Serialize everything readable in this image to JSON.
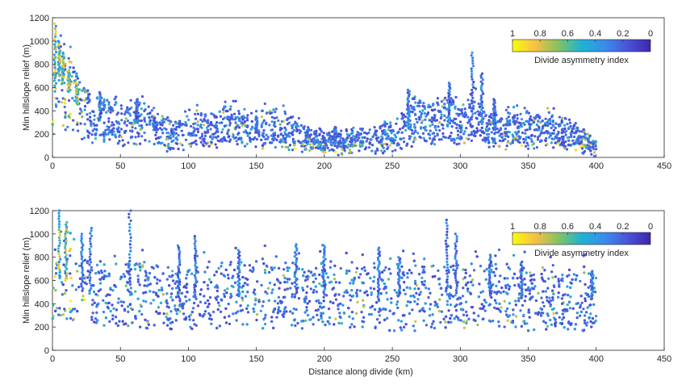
{
  "figure": {
    "xlabel": "Distance along divide (km)",
    "colorbar": {
      "label": "Divide asymmetry index",
      "tick_labels": [
        "1",
        "0.8",
        "0.6",
        "0.4",
        "0.2",
        "0"
      ],
      "tick_values": [
        1,
        0.8,
        0.6,
        0.4,
        0.2,
        0
      ],
      "colors": [
        "#F9FB0E",
        "#F6C045",
        "#83C263",
        "#1DB3D3",
        "#3A8DEA",
        "#4A53DB",
        "#3E26A8"
      ],
      "placement": "top-right",
      "range": [
        0,
        1
      ]
    }
  },
  "chart_data": [
    {
      "type": "scatter",
      "title": "",
      "xlabel": "",
      "ylabel": "Min hillslope relief (m)",
      "xlim": [
        0,
        450
      ],
      "ylim": [
        0,
        1200
      ],
      "xticks": [
        0,
        50,
        100,
        150,
        200,
        250,
        300,
        350,
        400,
        450
      ],
      "yticks": [
        0,
        200,
        400,
        600,
        800,
        1000,
        1200
      ],
      "grid": false,
      "x_extent": [
        0,
        400
      ],
      "note_color": "color encodes divide asymmetry index",
      "profile": [
        [
          0,
          520
        ],
        [
          5,
          700
        ],
        [
          10,
          600
        ],
        [
          20,
          420
        ],
        [
          30,
          340
        ],
        [
          40,
          300
        ],
        [
          50,
          280
        ],
        [
          60,
          300
        ],
        [
          70,
          280
        ],
        [
          80,
          220
        ],
        [
          90,
          200
        ],
        [
          100,
          240
        ],
        [
          110,
          260
        ],
        [
          120,
          250
        ],
        [
          130,
          260
        ],
        [
          140,
          250
        ],
        [
          150,
          240
        ],
        [
          160,
          250
        ],
        [
          170,
          240
        ],
        [
          180,
          200
        ],
        [
          190,
          150
        ],
        [
          200,
          130
        ],
        [
          210,
          120
        ],
        [
          220,
          140
        ],
        [
          230,
          140
        ],
        [
          240,
          160
        ],
        [
          250,
          180
        ],
        [
          260,
          260
        ],
        [
          270,
          320
        ],
        [
          280,
          300
        ],
        [
          290,
          330
        ],
        [
          300,
          300
        ],
        [
          310,
          330
        ],
        [
          320,
          260
        ],
        [
          330,
          220
        ],
        [
          340,
          240
        ],
        [
          350,
          240
        ],
        [
          360,
          230
        ],
        [
          370,
          230
        ],
        [
          380,
          200
        ],
        [
          390,
          130
        ],
        [
          400,
          90
        ]
      ],
      "spikes": [
        [
          2,
          1150
        ],
        [
          5,
          1000
        ],
        [
          8,
          900
        ],
        [
          12,
          750
        ],
        [
          18,
          640
        ],
        [
          35,
          560
        ],
        [
          62,
          500
        ],
        [
          150,
          350
        ],
        [
          208,
          260
        ],
        [
          262,
          580
        ],
        [
          292,
          640
        ],
        [
          309,
          900
        ],
        [
          316,
          720
        ],
        [
          325,
          500
        ]
      ]
    },
    {
      "type": "scatter",
      "title": "",
      "xlabel": "Distance along divide (km)",
      "ylabel": "Min hillslope relief (m)",
      "xlim": [
        0,
        450
      ],
      "ylim": [
        0,
        1200
      ],
      "xticks": [
        0,
        50,
        100,
        150,
        200,
        250,
        300,
        350,
        400,
        450
      ],
      "yticks": [
        0,
        200,
        400,
        600,
        800,
        1000,
        1200
      ],
      "grid": false,
      "x_extent": [
        0,
        400
      ],
      "note_color": "color encodes divide asymmetry index",
      "profile": [
        [
          0,
          500
        ],
        [
          5,
          620
        ],
        [
          10,
          600
        ],
        [
          20,
          520
        ],
        [
          30,
          480
        ],
        [
          40,
          460
        ],
        [
          50,
          470
        ],
        [
          60,
          480
        ],
        [
          70,
          470
        ],
        [
          80,
          450
        ],
        [
          90,
          440
        ],
        [
          100,
          450
        ],
        [
          110,
          460
        ],
        [
          120,
          470
        ],
        [
          130,
          460
        ],
        [
          140,
          470
        ],
        [
          150,
          480
        ],
        [
          160,
          480
        ],
        [
          170,
          470
        ],
        [
          180,
          480
        ],
        [
          190,
          470
        ],
        [
          200,
          480
        ],
        [
          210,
          470
        ],
        [
          220,
          460
        ],
        [
          230,
          470
        ],
        [
          240,
          460
        ],
        [
          250,
          470
        ],
        [
          260,
          460
        ],
        [
          270,
          470
        ],
        [
          280,
          480
        ],
        [
          290,
          480
        ],
        [
          300,
          470
        ],
        [
          310,
          460
        ],
        [
          320,
          470
        ],
        [
          330,
          460
        ],
        [
          340,
          450
        ],
        [
          350,
          450
        ],
        [
          360,
          440
        ],
        [
          370,
          440
        ],
        [
          380,
          440
        ],
        [
          390,
          430
        ],
        [
          400,
          450
        ]
      ],
      "spikes": [
        [
          5,
          1200
        ],
        [
          10,
          1100
        ],
        [
          22,
          1000
        ],
        [
          28,
          1050
        ],
        [
          57,
          1200
        ],
        [
          93,
          900
        ],
        [
          105,
          980
        ],
        [
          137,
          860
        ],
        [
          179,
          910
        ],
        [
          200,
          900
        ],
        [
          240,
          880
        ],
        [
          255,
          800
        ],
        [
          290,
          1120
        ],
        [
          297,
          1000
        ],
        [
          322,
          820
        ],
        [
          345,
          760
        ],
        [
          397,
          680
        ]
      ]
    }
  ]
}
